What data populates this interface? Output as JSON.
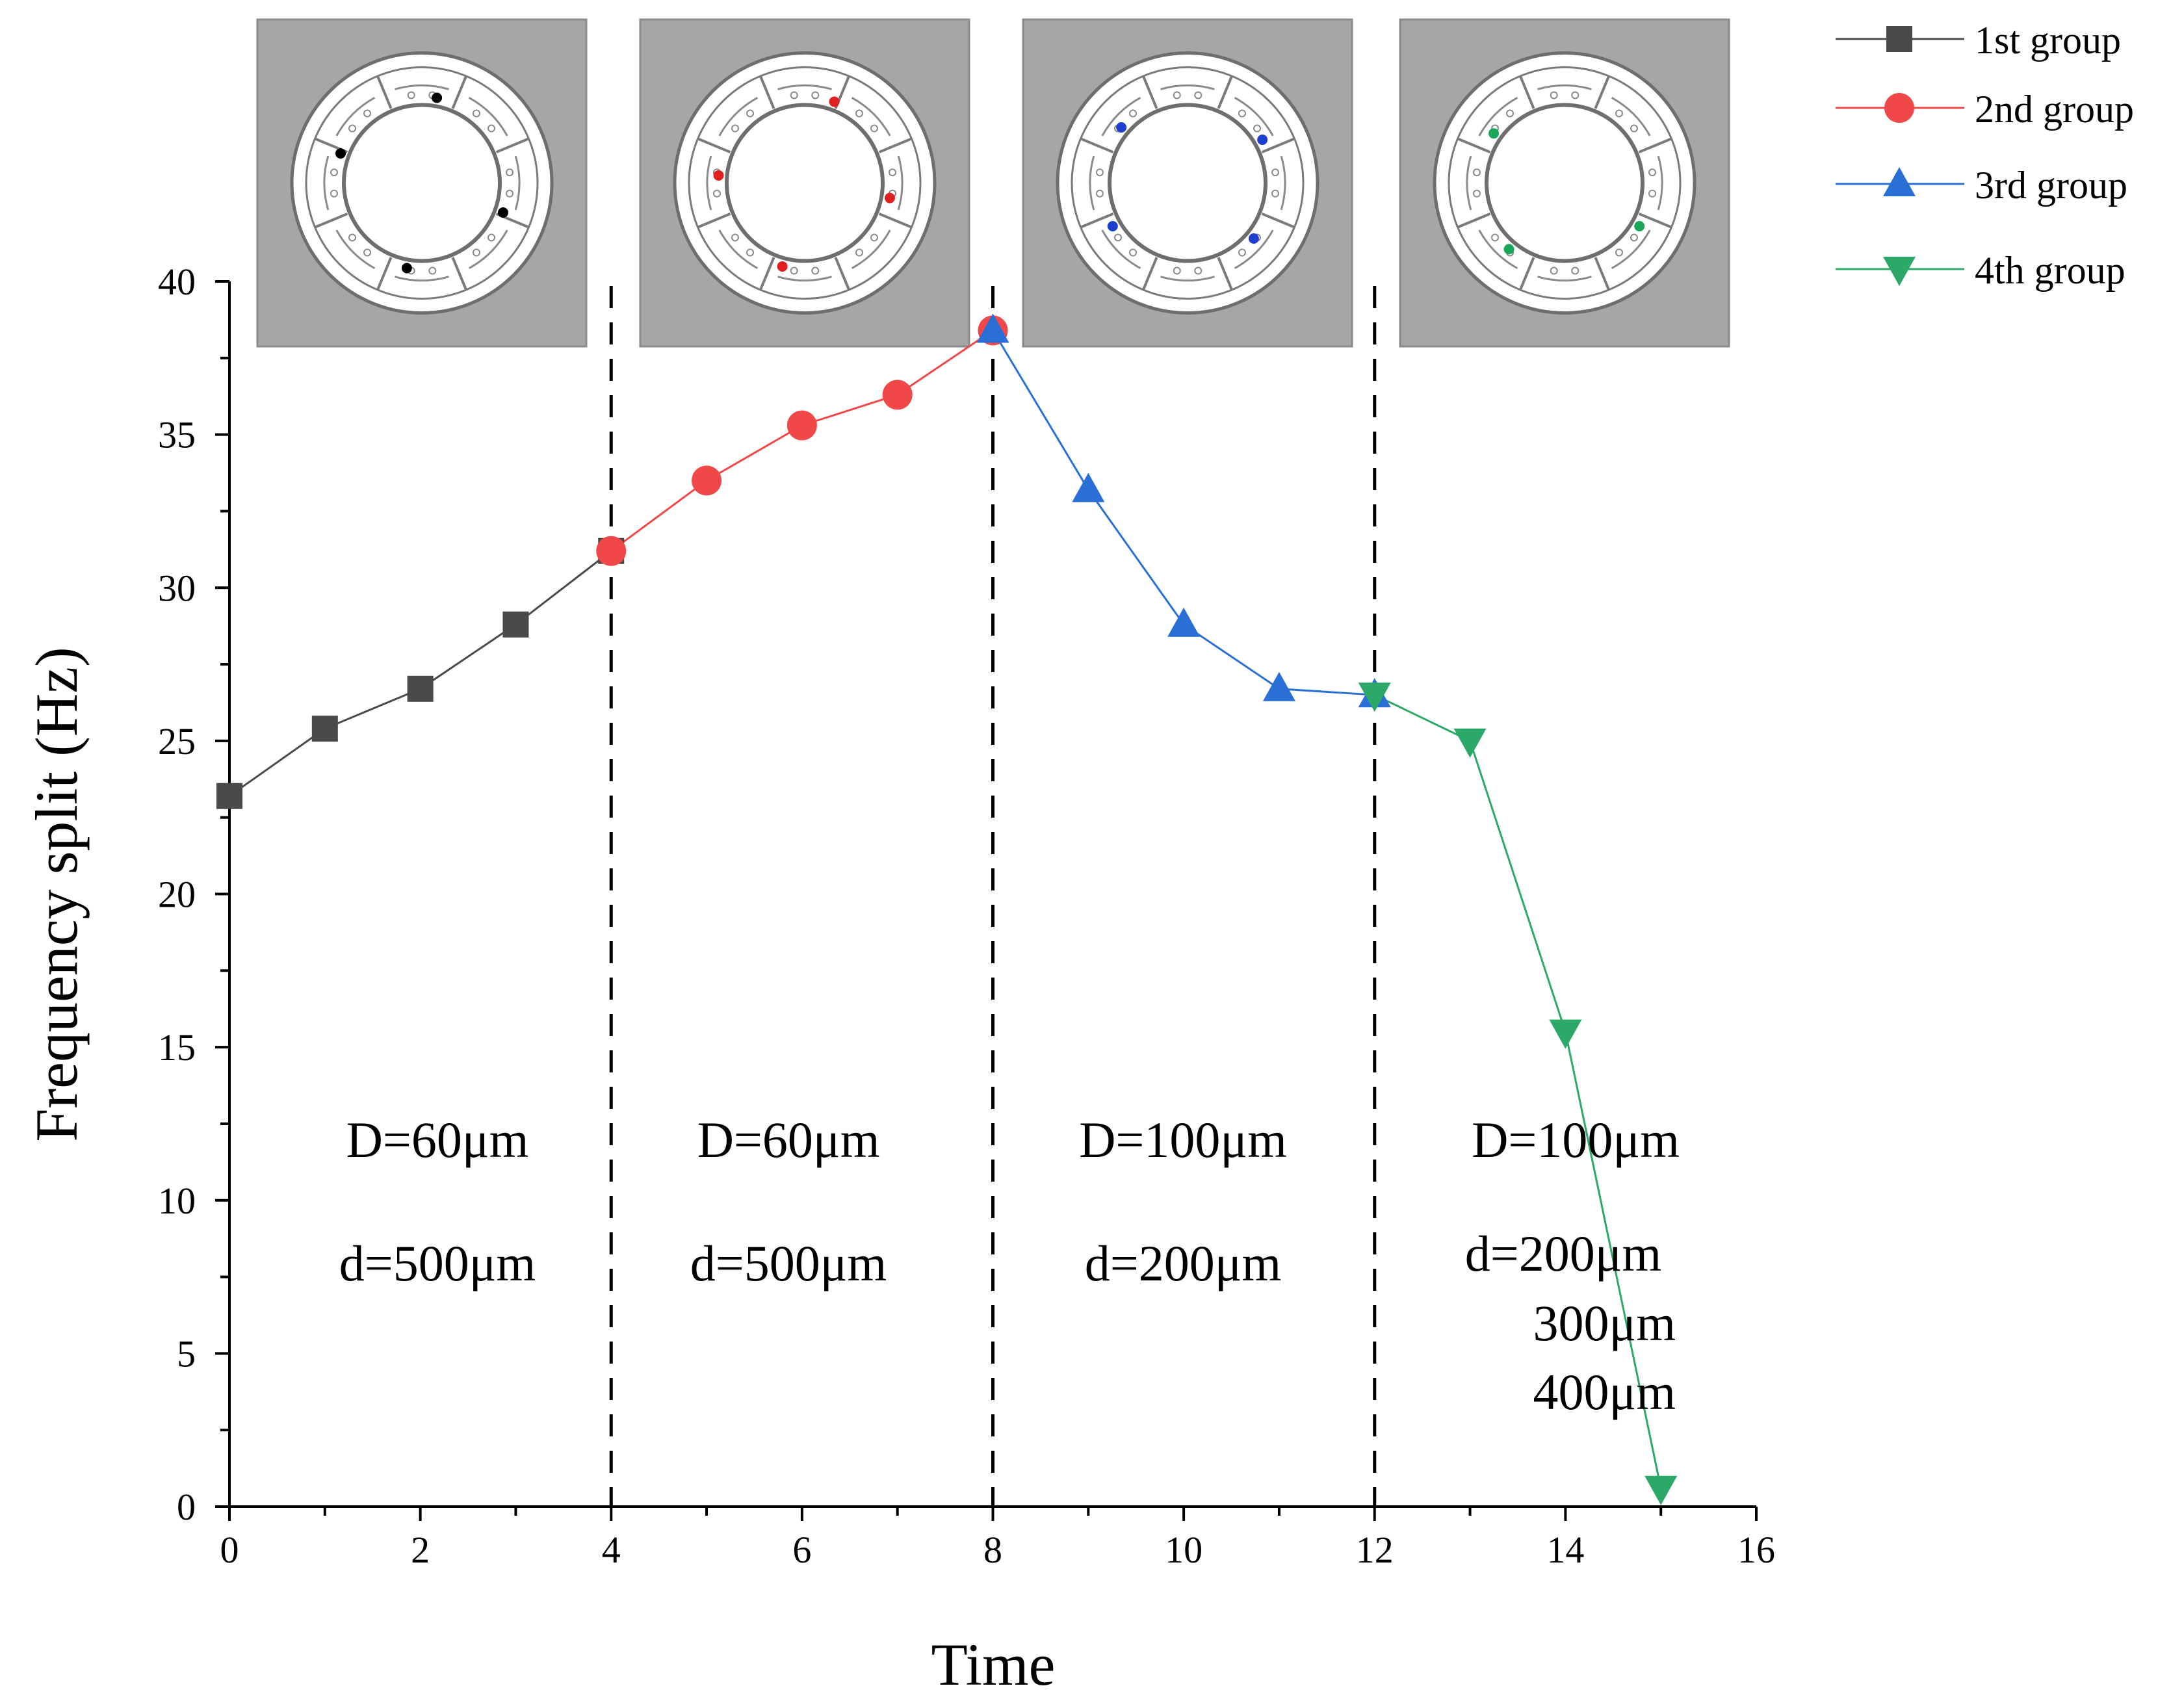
{
  "chart_data": {
    "type": "line",
    "title": "",
    "xlabel": "Time",
    "ylabel": "Frequency split (Hz)",
    "xlim": [
      0,
      16
    ],
    "ylim": [
      0,
      40
    ],
    "xticks": [
      0,
      2,
      4,
      6,
      8,
      10,
      12,
      14,
      16
    ],
    "yticks": [
      0,
      5,
      10,
      15,
      20,
      25,
      30,
      35,
      40
    ],
    "grid": false,
    "legend": "top-right",
    "series": [
      {
        "name": "1st group",
        "color": "#4a4a4a",
        "marker": "square",
        "x": [
          0,
          1,
          2,
          3,
          4
        ],
        "y": [
          23.2,
          25.4,
          26.7,
          28.8,
          31.2
        ]
      },
      {
        "name": "2nd group",
        "color": "#f04848",
        "marker": "circle",
        "x": [
          4,
          5,
          6,
          7,
          8
        ],
        "y": [
          31.2,
          33.5,
          35.3,
          36.3,
          38.4
        ]
      },
      {
        "name": "3rd group",
        "color": "#2a6fd6",
        "marker": "triangle-up",
        "x": [
          8,
          9,
          10,
          11,
          12
        ],
        "y": [
          38.4,
          33.2,
          28.8,
          26.7,
          26.5
        ]
      },
      {
        "name": "4th group",
        "color": "#2ca868",
        "marker": "triangle-down",
        "x": [
          12,
          13,
          14,
          15
        ],
        "y": [
          26.5,
          25.0,
          15.5,
          0.6
        ]
      }
    ],
    "dividers_x": [
      4,
      8,
      12
    ],
    "annotations": [
      {
        "lines": [
          "D=60μm",
          "d=500μm"
        ]
      },
      {
        "lines": [
          "D=60μm",
          "d=500μm"
        ]
      },
      {
        "lines": [
          "D=100μm",
          "d=200μm"
        ]
      },
      {
        "lines": [
          "D=100μm",
          "d=200μm",
          "300μm",
          "400μm"
        ]
      }
    ],
    "insets": [
      {
        "dot_color": "#000000",
        "dot_angles": [
          80,
          160,
          260,
          340
        ]
      },
      {
        "dot_color": "#e02020",
        "dot_angles": [
          70,
          175,
          255,
          350
        ]
      },
      {
        "dot_color": "#1c3fd0",
        "dot_angles": [
          30,
          140,
          210,
          320
        ]
      },
      {
        "dot_color": "#19a65a",
        "dot_angles": [
          145,
          230,
          330
        ]
      }
    ]
  }
}
